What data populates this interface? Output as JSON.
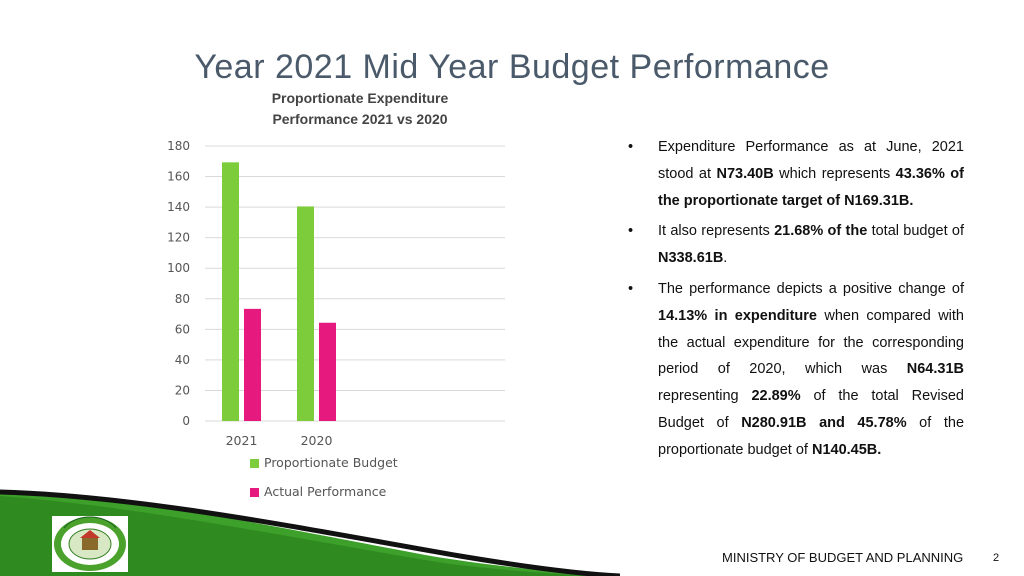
{
  "slide": {
    "title": "Year 2021 Mid Year Budget Performance",
    "footer": "MINISTRY OF BUDGET AND PLANNING",
    "page_number": "2",
    "logo_text": "OGUN STATE NIGERIA"
  },
  "chart_data": {
    "type": "bar",
    "title": "Proportionate Expenditure Performance 2021 vs 2020",
    "title_lines": [
      "Proportionate Expenditure",
      "Performance 2021 vs 2020"
    ],
    "categories": [
      "2021",
      "2020"
    ],
    "series": [
      {
        "name": "Proportionate Budget",
        "values": [
          169.31,
          140.45
        ],
        "color": "#7ccc3c"
      },
      {
        "name": "Actual Performance",
        "values": [
          73.4,
          64.31
        ],
        "color": "#e6197f"
      }
    ],
    "ylim": [
      0,
      180
    ],
    "yticks": [
      "0",
      "20",
      "40",
      "60",
      "80",
      "100",
      "120",
      "140",
      "160",
      "180"
    ],
    "grid": true,
    "legend_position": "bottom"
  },
  "bullets": [
    {
      "segments": [
        {
          "t": "Expenditure Performance as at June, 2021 stood at ",
          "b": false
        },
        {
          "t": "N73.40B",
          "b": true
        },
        {
          "t": " which represents ",
          "b": false
        },
        {
          "t": "43.36% of the proportionate target of N169.31B.",
          "b": true
        }
      ]
    },
    {
      "segments": [
        {
          "t": "It also represents ",
          "b": false
        },
        {
          "t": "21.68% of the",
          "b": true
        },
        {
          "t": " total budget of ",
          "b": false
        },
        {
          "t": "N338.61B",
          "b": true
        },
        {
          "t": ".",
          "b": false
        }
      ]
    },
    {
      "segments": [
        {
          "t": "The performance depicts a positive change of ",
          "b": false
        },
        {
          "t": "14.13%  in expenditure",
          "b": true
        },
        {
          "t": " when compared with the actual expenditure for the corresponding period of 2020, which was ",
          "b": false
        },
        {
          "t": "N64.31B",
          "b": true
        },
        {
          "t": " representing ",
          "b": false
        },
        {
          "t": "22.89%",
          "b": true
        },
        {
          "t": " of the total Revised Budget of ",
          "b": false
        },
        {
          "t": "N280.91B and 45.78%",
          "b": true
        },
        {
          "t": " of the proportionate budget of ",
          "b": false
        },
        {
          "t": "N140.45B.",
          "b": true
        }
      ]
    }
  ]
}
